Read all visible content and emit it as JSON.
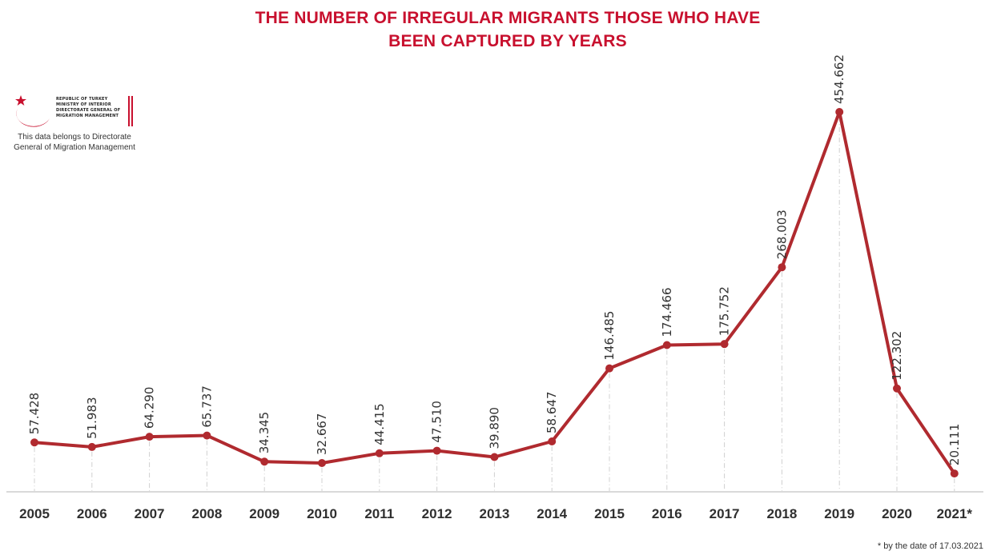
{
  "chart_data": {
    "type": "line",
    "title": [
      "THE NUMBER OF IRREGULAR MIGRANTS THOSE WHO HAVE",
      "BEEN CAPTURED  BY YEARS"
    ],
    "categories": [
      "2005",
      "2006",
      "2007",
      "2008",
      "2009",
      "2010",
      "2011",
      "2012",
      "2013",
      "2014",
      "2015",
      "2016",
      "2017",
      "2018",
      "2019",
      "2020",
      "2021*"
    ],
    "values": [
      57428,
      51983,
      64290,
      65737,
      34345,
      32667,
      44415,
      47510,
      39890,
      58647,
      146485,
      174466,
      175752,
      268003,
      454662,
      122302,
      20111
    ],
    "data_labels": [
      "57.428",
      "51.983",
      "64.290",
      "65.737",
      "34.345",
      "32.667",
      "44.415",
      "47.510",
      "39.890",
      "58.647",
      "146.485",
      "174.466",
      "175.752",
      "268.003",
      "454.662",
      "122.302",
      "20.111"
    ],
    "ylim": [
      0,
      500000
    ],
    "grid": false,
    "line_color": "#b02a2f",
    "axis_color": "#d9d9d9"
  },
  "logo": {
    "lines": [
      "REPUBLIC OF TURKEY",
      "MINISTRY OF INTERIOR",
      "DIRECTORATE GENERAL OF",
      "MIGRATION MANAGEMENT"
    ],
    "note_line1": "This data belongs to Directorate",
    "note_line2": "General of Migration Management",
    "color": "#c8102e"
  },
  "footnote": "* by the date of 17.03.2021"
}
